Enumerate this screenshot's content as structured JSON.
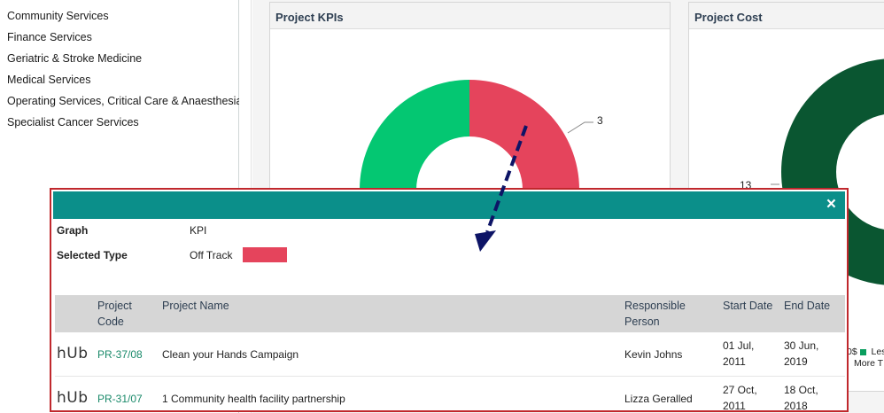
{
  "sidebar": {
    "items": [
      {
        "label": "Community Services"
      },
      {
        "label": "Finance Services"
      },
      {
        "label": "Geriatric & Stroke Medicine"
      },
      {
        "label": "Medical Services"
      },
      {
        "label": "Operating Services, Critical Care & Anaesthesia"
      },
      {
        "label": "Specialist Cancer Services"
      }
    ]
  },
  "panels": {
    "kpi": {
      "title": "Project KPIs",
      "slice_label": "3"
    },
    "cost": {
      "title": "Project Cost",
      "slice_label": "13",
      "legend": [
        {
          "label": "Les",
          "color": "#0a9e5e"
        },
        {
          "label": "More T",
          "color": "#0a9e5e"
        }
      ],
      "legend_prefix": "0$"
    }
  },
  "chart_data": [
    {
      "type": "pie",
      "title": "Project KPIs",
      "series": [
        {
          "name": "",
          "values": [
            3,
            3
          ],
          "colors": [
            "#04c772",
            "#e5445c"
          ]
        }
      ],
      "data_labels": [
        "",
        "3"
      ]
    },
    {
      "type": "pie",
      "title": "Project Cost",
      "series": [
        {
          "name": "",
          "values": [
            13
          ],
          "colors": [
            "#0a5631"
          ]
        }
      ],
      "data_labels": [
        "13"
      ]
    }
  ],
  "modal": {
    "close_label": "×",
    "graph_label": "Graph",
    "graph_value": "KPI",
    "type_label": "Selected Type",
    "type_value": "Off Track",
    "type_color": "#e5445c",
    "columns": {
      "code": [
        "Project",
        "Code"
      ],
      "name": "Project Name",
      "person": [
        "Responsible",
        "Person"
      ],
      "start": "Start Date",
      "end": "End Date"
    },
    "rows": [
      {
        "logo": "hUb",
        "code": "PR-37/08",
        "name": "Clean your Hands Campaign",
        "person": "Kevin Johns",
        "start": [
          "01 Jul,",
          "2011"
        ],
        "end": [
          "30 Jun,",
          "2019"
        ]
      },
      {
        "logo": "hUb",
        "code": "PR-31/07",
        "name": "1 Community health facility partnership",
        "person": "Lizza Geralled",
        "start": [
          "27 Oct,",
          "2011"
        ],
        "end": [
          "18 Oct,",
          "2018"
        ]
      }
    ]
  }
}
